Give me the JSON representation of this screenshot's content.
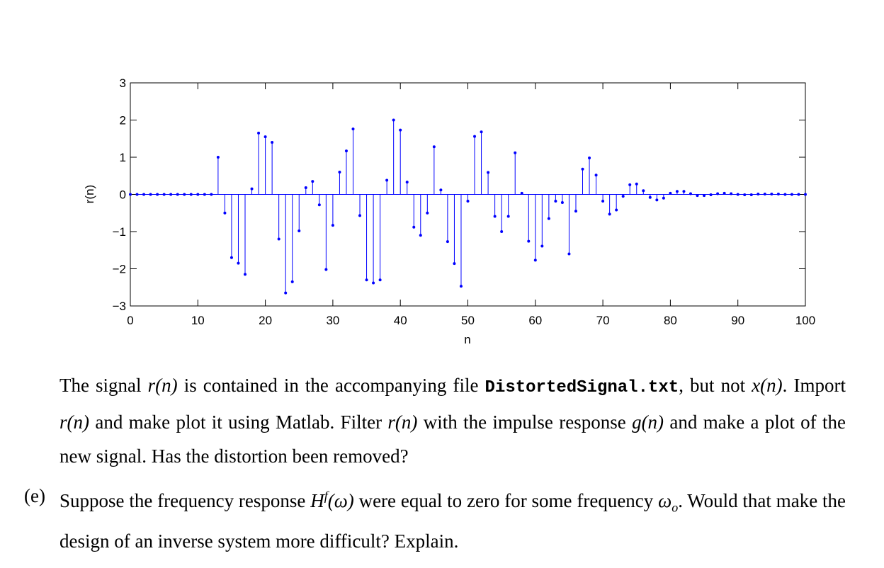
{
  "chart_data": {
    "type": "stem",
    "xlabel": "n",
    "ylabel": "r(n)",
    "color": "#0000ff",
    "xlim": [
      0,
      100
    ],
    "ylim": [
      -3,
      3
    ],
    "xticks": [
      0,
      10,
      20,
      30,
      40,
      50,
      60,
      70,
      80,
      90,
      100
    ],
    "yticks": [
      {
        "value": -3,
        "label": "−3"
      },
      {
        "value": -2,
        "label": "−2"
      },
      {
        "value": -1,
        "label": "−1"
      },
      0,
      1,
      2,
      3
    ],
    "x": [
      0,
      1,
      2,
      3,
      4,
      5,
      6,
      7,
      8,
      9,
      10,
      11,
      12,
      13,
      14,
      15,
      16,
      17,
      18,
      19,
      20,
      21,
      22,
      23,
      24,
      25,
      26,
      27,
      28,
      29,
      30,
      31,
      32,
      33,
      34,
      35,
      36,
      37,
      38,
      39,
      40,
      41,
      42,
      43,
      44,
      45,
      46,
      47,
      48,
      49,
      50,
      51,
      52,
      53,
      54,
      55,
      56,
      57,
      58,
      59,
      60,
      61,
      62,
      63,
      64,
      65,
      66,
      67,
      68,
      69,
      70,
      71,
      72,
      73,
      74,
      75,
      76,
      77,
      78,
      79,
      80,
      81,
      82,
      83,
      84,
      85,
      86,
      87,
      88,
      89,
      90,
      91,
      92,
      93,
      94,
      95,
      96,
      97,
      98,
      99,
      100
    ],
    "values": [
      0,
      0,
      0,
      0,
      0,
      0,
      0,
      0,
      0,
      0,
      0,
      0,
      0,
      1.0,
      -0.5,
      -1.7,
      -1.85,
      -2.15,
      0.15,
      1.65,
      1.55,
      1.4,
      -1.2,
      -2.65,
      -2.35,
      -0.98,
      0.18,
      0.35,
      -0.28,
      -2.02,
      -0.83,
      0.6,
      1.17,
      1.76,
      -0.57,
      -2.3,
      -2.38,
      -2.3,
      0.38,
      2.0,
      1.73,
      0.33,
      -0.88,
      -1.1,
      -0.5,
      1.28,
      0.12,
      -1.27,
      -1.86,
      -2.47,
      -0.18,
      1.56,
      1.68,
      0.59,
      -0.59,
      -1.0,
      -0.59,
      1.12,
      0.03,
      -1.26,
      -1.77,
      -1.39,
      -0.65,
      -0.18,
      -0.22,
      -1.6,
      -0.45,
      0.68,
      0.98,
      0.52,
      -0.18,
      -0.53,
      -0.42,
      -0.05,
      0.26,
      0.28,
      0.1,
      -0.08,
      -0.15,
      -0.1,
      0.03,
      0.08,
      0.08,
      0.02,
      -0.03,
      -0.03,
      -0.01,
      0.02,
      0.03,
      0.02,
      0,
      -0.01,
      -0.01,
      0.01,
      0.01,
      0.01,
      0.01,
      0,
      0,
      0,
      0
    ]
  },
  "text": {
    "paragraph1": [
      "The signal ",
      "r(n)",
      " is contained in the accompanying file ",
      "DistortedSignal.txt",
      ", but not ",
      "x(n)",
      ". Import ",
      "r(n)",
      " and make plot it using Matlab. Filter ",
      "r(n)",
      " with the impulse response ",
      "g(n)",
      " and make a plot of the new signal. Has the distortion been removed?"
    ],
    "item_e": {
      "label": "(e)",
      "segments": [
        "Suppose the frequency response ",
        "H",
        "f",
        "(ω)",
        " were equal to zero for some frequency ",
        "ω",
        "o",
        ". Would that make the design of an inverse system more difficult? Explain."
      ]
    }
  }
}
